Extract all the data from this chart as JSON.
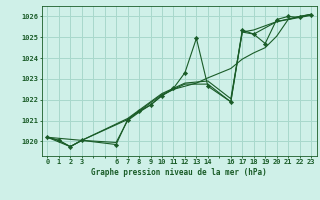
{
  "title": "Graphe pression niveau de la mer (hPa)",
  "bg_color": "#cff0e8",
  "grid_color": "#a8d8cc",
  "line_color": "#1a5c28",
  "marker_color": "#1a5c28",
  "ylim": [
    1019.3,
    1026.5
  ],
  "xlim": [
    -0.5,
    23.5
  ],
  "yticks": [
    1020,
    1021,
    1022,
    1023,
    1024,
    1025,
    1026
  ],
  "xtick_positions": [
    0,
    1,
    2,
    3,
    6,
    7,
    8,
    9,
    10,
    11,
    12,
    13,
    14,
    16,
    17,
    18,
    19,
    20,
    21,
    22,
    23
  ],
  "xtick_labels": [
    "0",
    "1",
    "2",
    "3",
    "6",
    "7",
    "8",
    "9",
    "10",
    "11",
    "12",
    "13",
    "14",
    "16",
    "17",
    "18",
    "19",
    "20",
    "21",
    "22",
    "23"
  ],
  "series1": [
    [
      0,
      1020.2
    ],
    [
      1,
      1020.05
    ],
    [
      2,
      1019.75
    ],
    [
      3,
      1020.05
    ],
    [
      6,
      1019.85
    ],
    [
      7,
      1021.05
    ],
    [
      8,
      1021.45
    ],
    [
      9,
      1021.75
    ],
    [
      10,
      1022.2
    ],
    [
      11,
      1022.55
    ],
    [
      12,
      1023.3
    ],
    [
      13,
      1024.95
    ],
    [
      14,
      1022.65
    ],
    [
      16,
      1021.9
    ],
    [
      17,
      1025.35
    ],
    [
      18,
      1025.15
    ],
    [
      19,
      1024.7
    ],
    [
      20,
      1025.85
    ],
    [
      21,
      1026.0
    ],
    [
      22,
      1025.95
    ],
    [
      23,
      1026.05
    ]
  ],
  "series2": [
    [
      0,
      1020.2
    ],
    [
      1,
      1020.05
    ],
    [
      2,
      1019.75
    ],
    [
      3,
      1020.05
    ],
    [
      6,
      1019.95
    ],
    [
      7,
      1021.0
    ],
    [
      8,
      1021.4
    ],
    [
      9,
      1021.75
    ],
    [
      10,
      1022.2
    ],
    [
      11,
      1022.5
    ],
    [
      12,
      1022.65
    ],
    [
      13,
      1022.8
    ],
    [
      14,
      1023.05
    ],
    [
      16,
      1023.5
    ],
    [
      17,
      1023.95
    ],
    [
      18,
      1024.25
    ],
    [
      19,
      1024.5
    ],
    [
      20,
      1025.05
    ],
    [
      21,
      1025.85
    ],
    [
      22,
      1026.0
    ],
    [
      23,
      1026.1
    ]
  ],
  "series3": [
    [
      0,
      1020.2
    ],
    [
      3,
      1020.05
    ],
    [
      7,
      1021.1
    ],
    [
      10,
      1022.3
    ],
    [
      12,
      1022.8
    ],
    [
      14,
      1022.9
    ],
    [
      16,
      1022.05
    ],
    [
      17,
      1025.25
    ],
    [
      18,
      1025.35
    ],
    [
      20,
      1025.75
    ],
    [
      22,
      1026.0
    ],
    [
      23,
      1026.1
    ]
  ],
  "series4": [
    [
      0,
      1020.2
    ],
    [
      2,
      1019.75
    ],
    [
      3,
      1020.05
    ],
    [
      7,
      1021.05
    ],
    [
      10,
      1022.25
    ],
    [
      12,
      1022.75
    ],
    [
      14,
      1022.75
    ],
    [
      16,
      1021.9
    ],
    [
      17,
      1025.25
    ],
    [
      18,
      1025.15
    ],
    [
      20,
      1025.75
    ],
    [
      22,
      1025.95
    ],
    [
      23,
      1026.1
    ]
  ]
}
